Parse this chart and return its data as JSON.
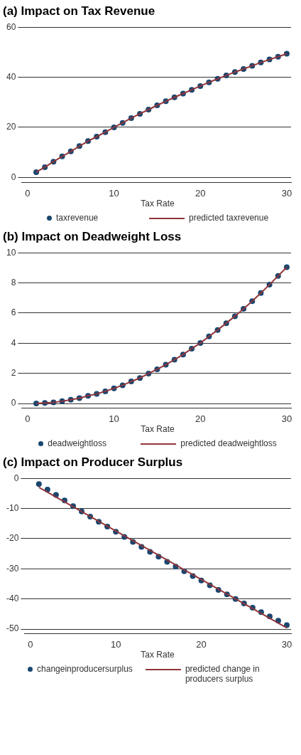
{
  "chart_data": [
    {
      "type": "scatter",
      "title": "(a) Impact on Tax Revenue",
      "xlabel": "Tax Rate",
      "xlim": [
        -0.7,
        30.5
      ],
      "xticks": [
        0,
        10,
        20,
        30
      ],
      "ylim": [
        -2,
        60
      ],
      "yticks": [
        0,
        20,
        40,
        60
      ],
      "grid": "y",
      "legend": "bottom",
      "x": [
        1,
        2,
        3,
        4,
        5,
        6,
        7,
        8,
        9,
        10,
        11,
        12,
        13,
        14,
        15,
        16,
        17,
        18,
        19,
        20,
        21,
        22,
        23,
        24,
        25,
        26,
        27,
        28,
        29,
        30
      ],
      "series": [
        {
          "name": "taxrevenue",
          "marker": "circle",
          "color": "#1a476f",
          "values": [
            2.1,
            4.1,
            6.3,
            8.4,
            10.4,
            12.5,
            14.5,
            16.3,
            18.1,
            20.0,
            21.8,
            23.7,
            25.4,
            27.1,
            28.8,
            30.4,
            32.0,
            33.5,
            35.0,
            36.5,
            38.0,
            39.4,
            40.7,
            42.1,
            43.3,
            44.6,
            45.9,
            47.1,
            48.2,
            49.4
          ]
        },
        {
          "name": "predicted taxrevenue",
          "type": "line",
          "color": "#90353b",
          "values": [
            2.1,
            4.1,
            6.3,
            8.4,
            10.4,
            12.5,
            14.5,
            16.3,
            18.1,
            20.0,
            21.8,
            23.7,
            25.4,
            27.1,
            28.8,
            30.4,
            32.0,
            33.5,
            35.0,
            36.5,
            38.0,
            39.4,
            40.7,
            42.1,
            43.3,
            44.6,
            45.9,
            47.1,
            48.2,
            49.4
          ]
        }
      ]
    },
    {
      "type": "scatter",
      "title": "(b) Impact on Deadweight Loss",
      "xlabel": "Tax Rate",
      "xlim": [
        -0.7,
        30.5
      ],
      "xticks": [
        0,
        10,
        20,
        30
      ],
      "ylim": [
        -0.3,
        10
      ],
      "yticks": [
        0,
        2,
        4,
        6,
        8,
        10
      ],
      "grid": "y",
      "legend": "bottom",
      "x": [
        1,
        2,
        3,
        4,
        5,
        6,
        7,
        8,
        9,
        10,
        11,
        12,
        13,
        14,
        15,
        16,
        17,
        18,
        19,
        20,
        21,
        22,
        23,
        24,
        25,
        26,
        27,
        28,
        29,
        30
      ],
      "series": [
        {
          "name": "deadweightloss",
          "marker": "circle",
          "color": "#1a476f",
          "values": [
            0.0,
            0.04,
            0.07,
            0.15,
            0.25,
            0.36,
            0.51,
            0.64,
            0.81,
            1.01,
            1.21,
            1.46,
            1.69,
            1.99,
            2.27,
            2.57,
            2.91,
            3.25,
            3.64,
            4.01,
            4.45,
            4.88,
            5.33,
            5.79,
            6.28,
            6.79,
            7.33,
            7.88,
            8.46,
            9.04
          ]
        },
        {
          "name": "predicted deadweightloss",
          "type": "line",
          "color": "#90353b",
          "values": [
            0.0,
            0.04,
            0.07,
            0.15,
            0.25,
            0.36,
            0.51,
            0.64,
            0.81,
            1.01,
            1.21,
            1.46,
            1.69,
            1.99,
            2.27,
            2.57,
            2.91,
            3.25,
            3.64,
            4.01,
            4.45,
            4.88,
            5.33,
            5.79,
            6.28,
            6.79,
            7.33,
            7.88,
            8.46,
            9.04
          ]
        }
      ]
    },
    {
      "type": "scatter",
      "title": "(c)  Impact on Producer Surplus",
      "xlabel": "Tax Rate",
      "xlim": [
        -0.7,
        30.5
      ],
      "xticks": [
        0,
        10,
        20,
        30
      ],
      "ylim": [
        -51.5,
        0
      ],
      "yticks": [
        -50,
        -40,
        -30,
        -20,
        -10,
        0
      ],
      "grid": "y",
      "legend": "bottom",
      "x": [
        1,
        2,
        3,
        4,
        5,
        6,
        7,
        8,
        9,
        10,
        11,
        12,
        13,
        14,
        15,
        16,
        17,
        18,
        19,
        20,
        21,
        22,
        23,
        24,
        25,
        26,
        27,
        28,
        29,
        30
      ],
      "series": [
        {
          "name": "changeinproducersurplus",
          "marker": "circle",
          "color": "#1a476f",
          "values": [
            -1.9,
            -3.7,
            -5.5,
            -7.3,
            -9.2,
            -11.0,
            -12.7,
            -14.4,
            -16.0,
            -17.7,
            -19.4,
            -21.1,
            -22.7,
            -24.4,
            -26.0,
            -27.7,
            -29.3,
            -30.8,
            -32.4,
            -33.9,
            -35.5,
            -37.0,
            -38.5,
            -40.0,
            -41.5,
            -42.9,
            -44.4,
            -45.8,
            -47.2,
            -48.7
          ]
        },
        {
          "name": "predicted change in producers surplus",
          "type": "line",
          "color": "#90353b",
          "x": [
            1,
            30
          ],
          "values": [
            -3.0,
            -49.6
          ]
        }
      ]
    }
  ]
}
